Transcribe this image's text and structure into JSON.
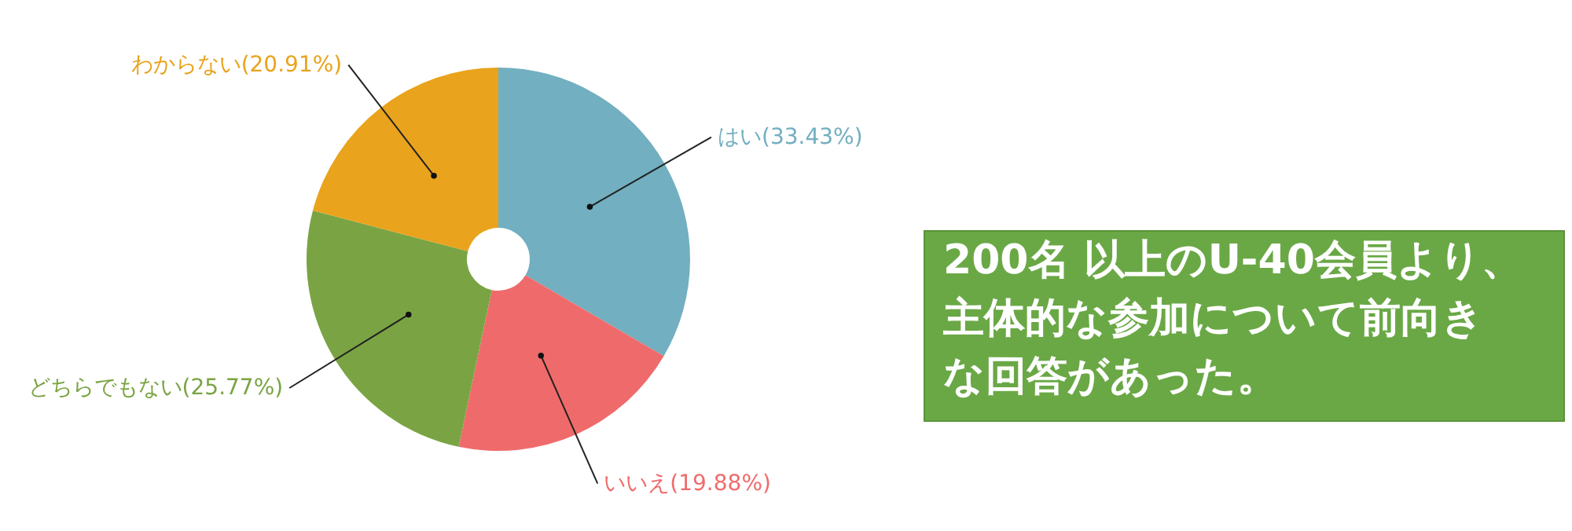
{
  "chart_data": {
    "type": "donut",
    "categories": [
      "はい",
      "いいえ",
      "どちらでもない",
      "わからない"
    ],
    "values": [
      33.43,
      19.88,
      25.77,
      20.91
    ],
    "colors": [
      "#72afc0",
      "#ef6b6b",
      "#7aa443",
      "#e9a31c"
    ],
    "value_labels": [
      "(33.43%)",
      "(19.88%)",
      "(25.77%)",
      "(20.91%)"
    ],
    "annotations": [
      "200名 以上のU-40会員より、主体的な参加について前向きな回答があった。"
    ]
  }
}
